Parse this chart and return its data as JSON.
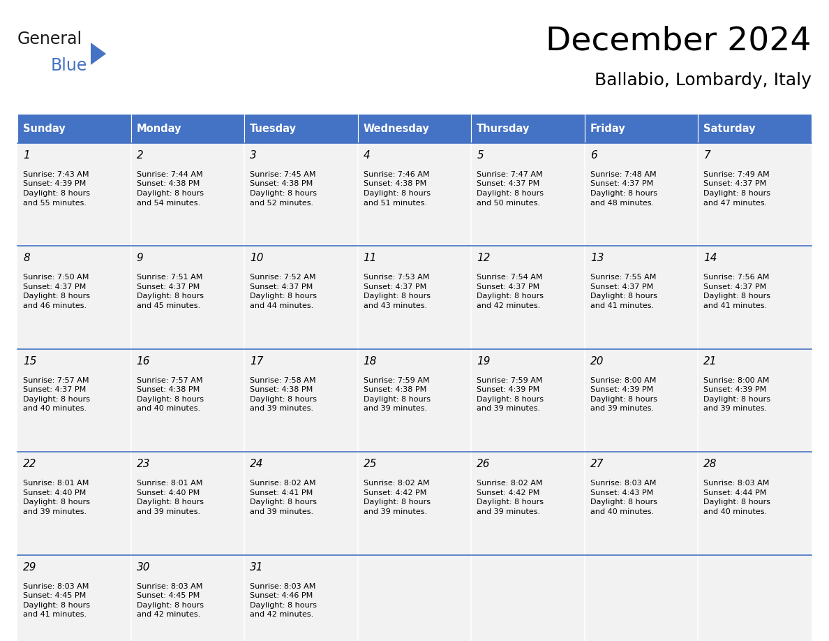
{
  "title": "December 2024",
  "subtitle": "Ballabio, Lombardy, Italy",
  "header_color": "#4472C4",
  "header_text_color": "#FFFFFF",
  "day_names": [
    "Sunday",
    "Monday",
    "Tuesday",
    "Wednesday",
    "Thursday",
    "Friday",
    "Saturday"
  ],
  "bg_color": "#FFFFFF",
  "cell_bg_color": "#F2F2F2",
  "text_color": "#000000",
  "line_color": "#4472C4",
  "days": [
    {
      "day": 1,
      "col": 0,
      "row": 0,
      "sunrise": "7:43 AM",
      "sunset": "4:39 PM",
      "daylight": "8 hours and 55 minutes."
    },
    {
      "day": 2,
      "col": 1,
      "row": 0,
      "sunrise": "7:44 AM",
      "sunset": "4:38 PM",
      "daylight": "8 hours and 54 minutes."
    },
    {
      "day": 3,
      "col": 2,
      "row": 0,
      "sunrise": "7:45 AM",
      "sunset": "4:38 PM",
      "daylight": "8 hours and 52 minutes."
    },
    {
      "day": 4,
      "col": 3,
      "row": 0,
      "sunrise": "7:46 AM",
      "sunset": "4:38 PM",
      "daylight": "8 hours and 51 minutes."
    },
    {
      "day": 5,
      "col": 4,
      "row": 0,
      "sunrise": "7:47 AM",
      "sunset": "4:37 PM",
      "daylight": "8 hours and 50 minutes."
    },
    {
      "day": 6,
      "col": 5,
      "row": 0,
      "sunrise": "7:48 AM",
      "sunset": "4:37 PM",
      "daylight": "8 hours and 48 minutes."
    },
    {
      "day": 7,
      "col": 6,
      "row": 0,
      "sunrise": "7:49 AM",
      "sunset": "4:37 PM",
      "daylight": "8 hours and 47 minutes."
    },
    {
      "day": 8,
      "col": 0,
      "row": 1,
      "sunrise": "7:50 AM",
      "sunset": "4:37 PM",
      "daylight": "8 hours and 46 minutes."
    },
    {
      "day": 9,
      "col": 1,
      "row": 1,
      "sunrise": "7:51 AM",
      "sunset": "4:37 PM",
      "daylight": "8 hours and 45 minutes."
    },
    {
      "day": 10,
      "col": 2,
      "row": 1,
      "sunrise": "7:52 AM",
      "sunset": "4:37 PM",
      "daylight": "8 hours and 44 minutes."
    },
    {
      "day": 11,
      "col": 3,
      "row": 1,
      "sunrise": "7:53 AM",
      "sunset": "4:37 PM",
      "daylight": "8 hours and 43 minutes."
    },
    {
      "day": 12,
      "col": 4,
      "row": 1,
      "sunrise": "7:54 AM",
      "sunset": "4:37 PM",
      "daylight": "8 hours and 42 minutes."
    },
    {
      "day": 13,
      "col": 5,
      "row": 1,
      "sunrise": "7:55 AM",
      "sunset": "4:37 PM",
      "daylight": "8 hours and 41 minutes."
    },
    {
      "day": 14,
      "col": 6,
      "row": 1,
      "sunrise": "7:56 AM",
      "sunset": "4:37 PM",
      "daylight": "8 hours and 41 minutes."
    },
    {
      "day": 15,
      "col": 0,
      "row": 2,
      "sunrise": "7:57 AM",
      "sunset": "4:37 PM",
      "daylight": "8 hours and 40 minutes."
    },
    {
      "day": 16,
      "col": 1,
      "row": 2,
      "sunrise": "7:57 AM",
      "sunset": "4:38 PM",
      "daylight": "8 hours and 40 minutes."
    },
    {
      "day": 17,
      "col": 2,
      "row": 2,
      "sunrise": "7:58 AM",
      "sunset": "4:38 PM",
      "daylight": "8 hours and 39 minutes."
    },
    {
      "day": 18,
      "col": 3,
      "row": 2,
      "sunrise": "7:59 AM",
      "sunset": "4:38 PM",
      "daylight": "8 hours and 39 minutes."
    },
    {
      "day": 19,
      "col": 4,
      "row": 2,
      "sunrise": "7:59 AM",
      "sunset": "4:39 PM",
      "daylight": "8 hours and 39 minutes."
    },
    {
      "day": 20,
      "col": 5,
      "row": 2,
      "sunrise": "8:00 AM",
      "sunset": "4:39 PM",
      "daylight": "8 hours and 39 minutes."
    },
    {
      "day": 21,
      "col": 6,
      "row": 2,
      "sunrise": "8:00 AM",
      "sunset": "4:39 PM",
      "daylight": "8 hours and 39 minutes."
    },
    {
      "day": 22,
      "col": 0,
      "row": 3,
      "sunrise": "8:01 AM",
      "sunset": "4:40 PM",
      "daylight": "8 hours and 39 minutes."
    },
    {
      "day": 23,
      "col": 1,
      "row": 3,
      "sunrise": "8:01 AM",
      "sunset": "4:40 PM",
      "daylight": "8 hours and 39 minutes."
    },
    {
      "day": 24,
      "col": 2,
      "row": 3,
      "sunrise": "8:02 AM",
      "sunset": "4:41 PM",
      "daylight": "8 hours and 39 minutes."
    },
    {
      "day": 25,
      "col": 3,
      "row": 3,
      "sunrise": "8:02 AM",
      "sunset": "4:42 PM",
      "daylight": "8 hours and 39 minutes."
    },
    {
      "day": 26,
      "col": 4,
      "row": 3,
      "sunrise": "8:02 AM",
      "sunset": "4:42 PM",
      "daylight": "8 hours and 39 minutes."
    },
    {
      "day": 27,
      "col": 5,
      "row": 3,
      "sunrise": "8:03 AM",
      "sunset": "4:43 PM",
      "daylight": "8 hours and 40 minutes."
    },
    {
      "day": 28,
      "col": 6,
      "row": 3,
      "sunrise": "8:03 AM",
      "sunset": "4:44 PM",
      "daylight": "8 hours and 40 minutes."
    },
    {
      "day": 29,
      "col": 0,
      "row": 4,
      "sunrise": "8:03 AM",
      "sunset": "4:45 PM",
      "daylight": "8 hours and 41 minutes."
    },
    {
      "day": 30,
      "col": 1,
      "row": 4,
      "sunrise": "8:03 AM",
      "sunset": "4:45 PM",
      "daylight": "8 hours and 42 minutes."
    },
    {
      "day": 31,
      "col": 2,
      "row": 4,
      "sunrise": "8:03 AM",
      "sunset": "4:46 PM",
      "daylight": "8 hours and 42 minutes."
    }
  ],
  "logo_text_general": "General",
  "logo_text_blue": "Blue",
  "logo_color_general": "#1a1a1a",
  "logo_color_blue": "#4472C4",
  "logo_triangle_color": "#4472C4"
}
